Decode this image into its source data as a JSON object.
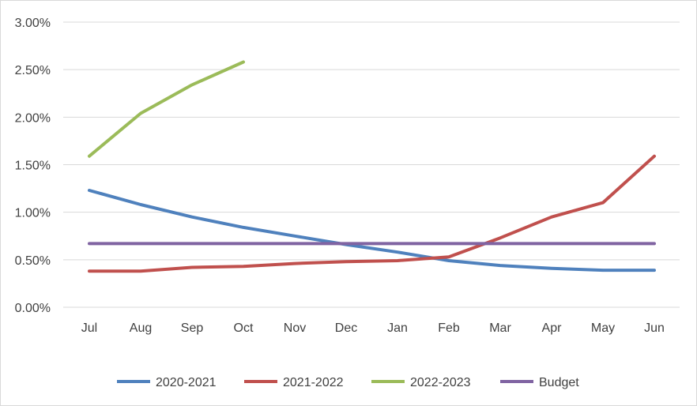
{
  "chart_data": {
    "type": "line",
    "title": "",
    "xlabel": "",
    "ylabel": "",
    "categories": [
      "Jul",
      "Aug",
      "Sep",
      "Oct",
      "Nov",
      "Dec",
      "Jan",
      "Feb",
      "Mar",
      "Apr",
      "May",
      "Jun"
    ],
    "ylim": [
      0,
      3
    ],
    "y_ticks": [
      0,
      0.5,
      1.0,
      1.5,
      2.0,
      2.5,
      3.0
    ],
    "y_tick_labels": [
      "0.00%",
      "0.50%",
      "1.00%",
      "1.50%",
      "2.00%",
      "2.50%",
      "3.00%"
    ],
    "y_unit": "%",
    "grid": "horizontal",
    "legend_position": "bottom",
    "series": [
      {
        "name": "2020-2021",
        "color": "#4f81bd",
        "values": [
          1.23,
          1.08,
          0.95,
          0.84,
          0.75,
          0.66,
          0.58,
          0.49,
          0.44,
          0.41,
          0.39,
          0.39
        ]
      },
      {
        "name": "2021-2022",
        "color": "#c0504d",
        "values": [
          0.38,
          0.38,
          0.42,
          0.43,
          0.46,
          0.48,
          0.49,
          0.53,
          0.73,
          0.95,
          1.1,
          1.59
        ]
      },
      {
        "name": "2022-2023",
        "color": "#9bbb59",
        "values": [
          1.59,
          2.04,
          2.34,
          2.58,
          null,
          null,
          null,
          null,
          null,
          null,
          null,
          null
        ]
      },
      {
        "name": "Budget",
        "color": "#8064a2",
        "values": [
          0.67,
          0.67,
          0.67,
          0.67,
          0.67,
          0.67,
          0.67,
          0.67,
          0.67,
          0.67,
          0.67,
          0.67
        ]
      }
    ]
  }
}
